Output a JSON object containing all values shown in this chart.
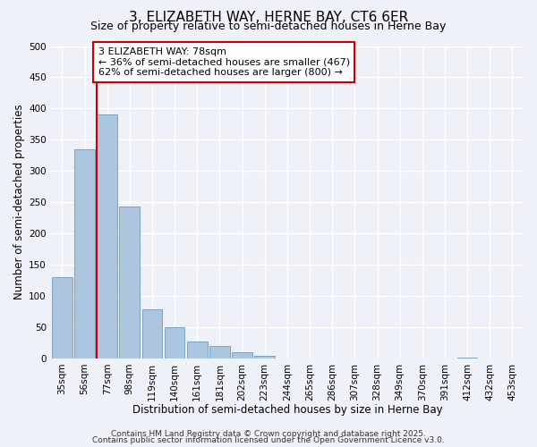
{
  "title": "3, ELIZABETH WAY, HERNE BAY, CT6 6ER",
  "subtitle": "Size of property relative to semi-detached houses in Herne Bay",
  "xlabel": "Distribution of semi-detached houses by size in Herne Bay",
  "ylabel": "Number of semi-detached properties",
  "bar_labels": [
    "35sqm",
    "56sqm",
    "77sqm",
    "98sqm",
    "119sqm",
    "140sqm",
    "161sqm",
    "181sqm",
    "202sqm",
    "223sqm",
    "244sqm",
    "265sqm",
    "286sqm",
    "307sqm",
    "328sqm",
    "349sqm",
    "370sqm",
    "391sqm",
    "412sqm",
    "432sqm",
    "453sqm"
  ],
  "bar_values": [
    130,
    335,
    390,
    243,
    79,
    50,
    27,
    20,
    10,
    4,
    0,
    0,
    0,
    0,
    0,
    0,
    0,
    0,
    1,
    0,
    0
  ],
  "bar_color": "#adc6e0",
  "bar_edge_color": "#6b9bbf",
  "property_label": "3 ELIZABETH WAY: 78sqm",
  "pct_smaller": 36,
  "count_smaller": 467,
  "pct_larger": 62,
  "count_larger": 800,
  "vline_x_index": 2,
  "vline_color": "#cc0000",
  "annotation_box_color": "#cc0000",
  "ylim": [
    0,
    500
  ],
  "yticks": [
    0,
    50,
    100,
    150,
    200,
    250,
    300,
    350,
    400,
    450,
    500
  ],
  "footer1": "Contains HM Land Registry data © Crown copyright and database right 2025.",
  "footer2": "Contains public sector information licensed under the Open Government Licence v3.0.",
  "background_color": "#eef2f8",
  "grid_color": "#ffffff",
  "title_fontsize": 11,
  "subtitle_fontsize": 9,
  "axis_label_fontsize": 8.5,
  "tick_fontsize": 7.5,
  "annotation_fontsize": 8,
  "footer_fontsize": 6.5
}
